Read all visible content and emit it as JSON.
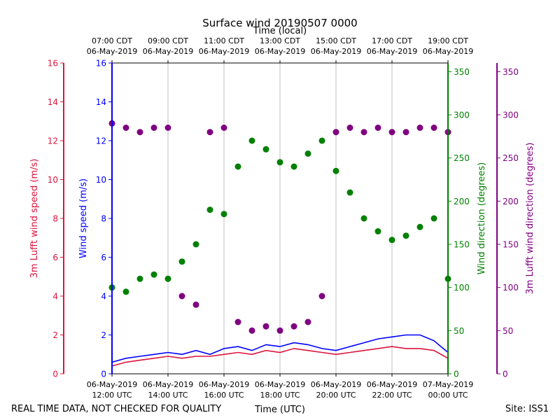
{
  "chart_data": {
    "type": "scatter",
    "title": "Surface wind 20190507 0000",
    "top_axis_label": "Time (local)",
    "xlabel": "Time (UTC)",
    "footer_left": "REAL TIME DATA, NOT CHECKED FOR QUALITY",
    "footer_right": "Site: ISS1",
    "x_range_utc_hours": [
      12,
      24
    ],
    "x_ticks_bottom": [
      {
        "hour": 12,
        "line1": "06-May-2019",
        "line2": "12:00 UTC"
      },
      {
        "hour": 14,
        "line1": "06-May-2019",
        "line2": "14:00 UTC"
      },
      {
        "hour": 16,
        "line1": "06-May-2019",
        "line2": "16:00 UTC"
      },
      {
        "hour": 18,
        "line1": "06-May-2019",
        "line2": "18:00 UTC"
      },
      {
        "hour": 20,
        "line1": "06-May-2019",
        "line2": "20:00 UTC"
      },
      {
        "hour": 22,
        "line1": "06-May-2019",
        "line2": "22:00 UTC"
      },
      {
        "hour": 24,
        "line1": "07-May-2019",
        "line2": "00:00 UTC"
      }
    ],
    "x_ticks_top": [
      {
        "hour": 12,
        "line1": "07:00 CDT",
        "line2": "06-May-2019"
      },
      {
        "hour": 14,
        "line1": "09:00 CDT",
        "line2": "06-May-2019"
      },
      {
        "hour": 16,
        "line1": "11:00 CDT",
        "line2": "06-May-2019"
      },
      {
        "hour": 18,
        "line1": "13:00 CDT",
        "line2": "06-May-2019"
      },
      {
        "hour": 20,
        "line1": "15:00 CDT",
        "line2": "06-May-2019"
      },
      {
        "hour": 22,
        "line1": "17:00 CDT",
        "line2": "06-May-2019"
      },
      {
        "hour": 24,
        "line1": "19:00 CDT",
        "line2": "06-May-2019"
      }
    ],
    "axes": {
      "lufft_speed": {
        "label": "3m Lufft wind speed (m/s)",
        "range": [
          0,
          16
        ],
        "ticks": [
          0,
          2,
          4,
          6,
          8,
          10,
          12,
          14,
          16
        ],
        "color": "#dc143c"
      },
      "wind_speed": {
        "label": "Wind speed (m/s)",
        "range": [
          0,
          16
        ],
        "ticks": [
          0,
          2,
          4,
          6,
          8,
          10,
          12,
          14,
          16
        ],
        "color": "#0000ff"
      },
      "wind_dir": {
        "label": "Wind direction (degrees)",
        "range": [
          0,
          360
        ],
        "ticks": [
          0,
          50,
          100,
          150,
          200,
          250,
          300,
          350
        ],
        "color": "#008000"
      },
      "lufft_dir": {
        "label": "3m Lufft wind direction (degrees)",
        "range": [
          0,
          360
        ],
        "ticks": [
          0,
          50,
          100,
          150,
          200,
          250,
          300,
          350
        ],
        "color": "#800080"
      }
    },
    "grid": "vertical",
    "series": [
      {
        "key": "wind_speed",
        "style": "line",
        "color": "#0000ff",
        "axis": "wind_speed",
        "x": [
          12,
          12.5,
          13,
          13.5,
          14,
          14.5,
          15,
          15.5,
          16,
          16.5,
          17,
          17.5,
          18,
          18.5,
          19,
          19.5,
          20,
          20.5,
          21,
          21.5,
          22,
          22.5,
          23,
          23.5,
          24
        ],
        "y": [
          0.6,
          0.8,
          0.9,
          1.0,
          1.1,
          1.0,
          1.2,
          1.0,
          1.3,
          1.4,
          1.2,
          1.5,
          1.4,
          1.6,
          1.5,
          1.3,
          1.2,
          1.4,
          1.6,
          1.8,
          1.9,
          2.0,
          2.0,
          1.7,
          1.1
        ]
      },
      {
        "key": "lufft_speed",
        "style": "line",
        "color": "#dc143c",
        "axis": "lufft_speed",
        "x": [
          12,
          12.5,
          13,
          13.5,
          14,
          14.5,
          15,
          15.5,
          16,
          16.5,
          17,
          17.5,
          18,
          18.5,
          19,
          19.5,
          20,
          20.5,
          21,
          21.5,
          22,
          22.5,
          23,
          23.5,
          24
        ],
        "y": [
          0.4,
          0.6,
          0.7,
          0.8,
          0.9,
          0.8,
          0.9,
          0.9,
          1.0,
          1.1,
          1.0,
          1.2,
          1.1,
          1.3,
          1.2,
          1.1,
          1.0,
          1.1,
          1.2,
          1.3,
          1.4,
          1.3,
          1.3,
          1.2,
          0.8
        ]
      },
      {
        "key": "wind_dir",
        "style": "scatter",
        "color": "#008000",
        "axis": "wind_dir",
        "x": [
          12,
          12.5,
          13,
          13.5,
          14,
          14.5,
          15,
          15.5,
          16,
          16.5,
          17,
          17.5,
          18,
          18.5,
          19,
          19.5,
          20,
          20.5,
          21,
          21.5,
          22,
          22.5,
          23,
          23.5,
          24
        ],
        "y": [
          100,
          95,
          110,
          115,
          110,
          130,
          150,
          190,
          185,
          240,
          270,
          260,
          245,
          240,
          255,
          270,
          235,
          210,
          180,
          165,
          155,
          160,
          170,
          180,
          110
        ]
      },
      {
        "key": "lufft_dir",
        "style": "scatter",
        "color": "#800080",
        "axis": "lufft_dir",
        "x": [
          12,
          12.5,
          13,
          13.5,
          14,
          14.5,
          15,
          15.5,
          16,
          16.5,
          17,
          17.5,
          18,
          18.5,
          19,
          19.5,
          20,
          20.5,
          21,
          21.5,
          22,
          22.5,
          23,
          23.5,
          24
        ],
        "y": [
          290,
          285,
          280,
          285,
          285,
          90,
          80,
          280,
          285,
          60,
          50,
          55,
          50,
          55,
          60,
          90,
          280,
          285,
          280,
          285,
          280,
          280,
          285,
          285,
          280
        ]
      }
    ]
  }
}
